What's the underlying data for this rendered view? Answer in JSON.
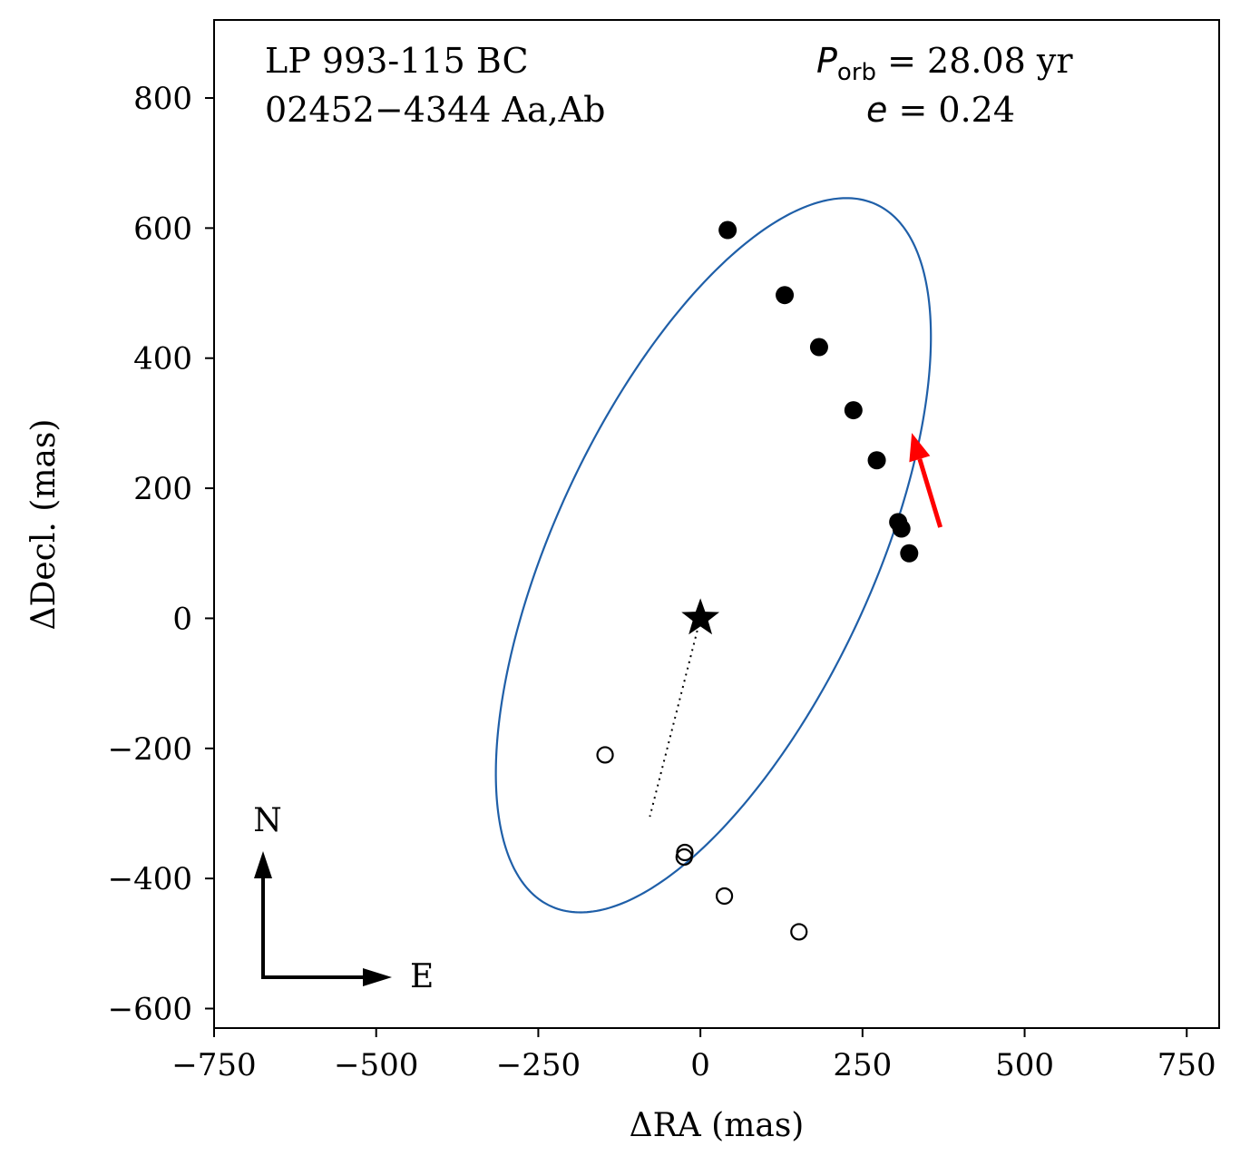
{
  "chart_data": {
    "type": "scatter",
    "title_lines": [
      "LP 993-115 BC",
      "02452−4344 Aa,Ab"
    ],
    "params": {
      "period_symbol": "P",
      "period_subscript": "orb",
      "period_text": " = 28.08 yr",
      "ecc_symbol": "e",
      "ecc_text": " = 0.24"
    },
    "xlabel": "ΔRA  (mas)",
    "ylabel": "ΔDecl.  (mas)",
    "xlim": [
      -750,
      800
    ],
    "ylim": [
      -630,
      920
    ],
    "xticks": [
      -750,
      -500,
      -250,
      0,
      250,
      500,
      750
    ],
    "xtick_labels": [
      "−750",
      "−500",
      "−250",
      "0",
      "250",
      "500",
      "750"
    ],
    "yticks": [
      -600,
      -400,
      -200,
      0,
      200,
      400,
      600,
      800
    ],
    "ytick_labels": [
      "−600",
      "−400",
      "−200",
      "0",
      "200",
      "400",
      "600",
      "800"
    ],
    "orbit_ellipse": {
      "center": [
        20,
        97
      ],
      "semi_axes": [
        595,
        245
      ],
      "rotation_deg": 65,
      "color": "#1f5fa8"
    },
    "primary_star": [
      0,
      0
    ],
    "periastron_line": {
      "from": [
        0,
        0
      ],
      "to": [
        -78,
        -305
      ]
    },
    "filled_points": [
      [
        42,
        597
      ],
      [
        130,
        497
      ],
      [
        183,
        417
      ],
      [
        236,
        320
      ],
      [
        272,
        243
      ],
      [
        305,
        148
      ],
      [
        310,
        138
      ],
      [
        322,
        100
      ]
    ],
    "open_points": [
      [
        -147,
        -210
      ],
      [
        -24,
        -360
      ],
      [
        -25,
        -367
      ],
      [
        37,
        -427
      ],
      [
        152,
        -482
      ]
    ],
    "motion_arrow": {
      "from": [
        370,
        140
      ],
      "to": [
        326,
        285
      ],
      "color": "#ff0000"
    },
    "compass": {
      "north": "N",
      "east": "E"
    }
  }
}
